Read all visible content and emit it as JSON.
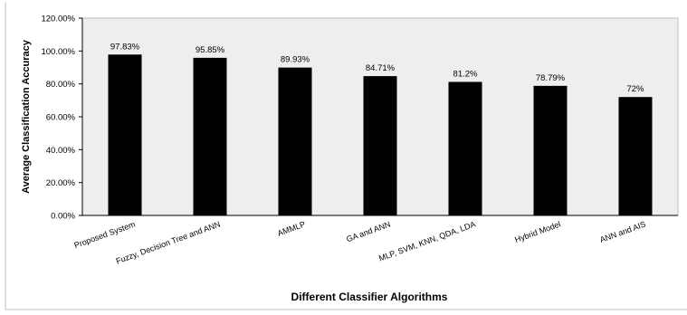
{
  "chart_data": {
    "type": "bar",
    "title": "",
    "xlabel": "Different Classifier Algorithms",
    "ylabel": "Average Classification Accuracy",
    "ylim": [
      0,
      120
    ],
    "grid": false,
    "legend": "none",
    "categories": [
      "Proposed System",
      "Fuzzy, Decision Tree and ANN",
      "AMMLP",
      "GA and ANN",
      "MLP, SVM, KNN, QDA, LDA",
      "Hybrid Model",
      "ANN and AIS"
    ],
    "values": [
      97.83,
      95.85,
      89.93,
      84.71,
      81.2,
      78.79,
      72
    ],
    "data_labels": [
      "97.83%",
      "95.85%",
      "89.93%",
      "84.71%",
      "81.2%",
      "78.79%",
      "72%"
    ],
    "y_ticks": [
      0,
      20,
      40,
      60,
      80,
      100,
      120
    ],
    "y_tick_labels": [
      "0.00%",
      "20.00%",
      "40.00%",
      "60.00%",
      "80.00%",
      "100.00%",
      "120.00%"
    ],
    "colors": {
      "bar": "#000000",
      "plot_background": "#eeeeee",
      "frame": "#bfbfbf"
    }
  }
}
